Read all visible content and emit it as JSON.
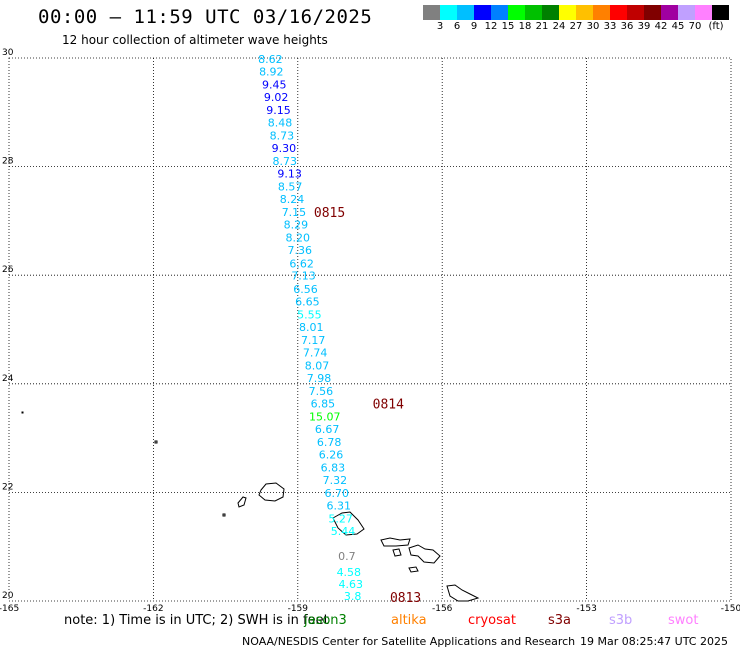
{
  "header": {
    "title": "00:00 – 11:59 UTC 03/16/2025",
    "subtitle": "12 hour collection of altimeter wave heights"
  },
  "legend": {
    "colors": [
      "#808080",
      "#00ffff",
      "#00bfff",
      "#0000ff",
      "#0080ff",
      "#00ff00",
      "#00c000",
      "#008000",
      "#ffff00",
      "#ffc000",
      "#ff8000",
      "#ff0000",
      "#c00000",
      "#800000",
      "#a000a0",
      "#c0a0ff",
      "#ff80ff",
      "#000000"
    ],
    "labels": [
      "3",
      "6",
      "9",
      "12",
      "15",
      "18",
      "21",
      "24",
      "27",
      "30",
      "33",
      "36",
      "39",
      "42",
      "45",
      "70",
      "(ft)"
    ]
  },
  "axes": {
    "x_ticks": [
      "-165",
      "-162",
      "-159",
      "-156",
      "-153",
      "-150"
    ],
    "y_ticks": [
      "30",
      "28",
      "26",
      "24",
      "22",
      "20"
    ]
  },
  "chart_data": {
    "type": "scatter",
    "xlim": [
      -165,
      -150
    ],
    "ylim": [
      20,
      30
    ],
    "grid": true,
    "points": [
      {
        "lon": -159.57,
        "lat": 29.98,
        "v": "8.62"
      },
      {
        "lon": -159.55,
        "lat": 29.75,
        "v": "8.92"
      },
      {
        "lon": -159.49,
        "lat": 29.51,
        "v": "9.45"
      },
      {
        "lon": -159.45,
        "lat": 29.28,
        "v": "9.02"
      },
      {
        "lon": -159.4,
        "lat": 29.04,
        "v": "9.15"
      },
      {
        "lon": -159.37,
        "lat": 28.81,
        "v": "8.48"
      },
      {
        "lon": -159.33,
        "lat": 28.57,
        "v": "8.73"
      },
      {
        "lon": -159.29,
        "lat": 28.34,
        "v": "9.30"
      },
      {
        "lon": -159.27,
        "lat": 28.1,
        "v": "8.73"
      },
      {
        "lon": -159.17,
        "lat": 27.87,
        "v": "9.13"
      },
      {
        "lon": -159.16,
        "lat": 27.63,
        "v": "8.57"
      },
      {
        "lon": -159.12,
        "lat": 27.4,
        "v": "8.24"
      },
      {
        "lon": -159.08,
        "lat": 27.16,
        "v": "7.15"
      },
      {
        "lon": -159.04,
        "lat": 26.93,
        "v": "8.29"
      },
      {
        "lon": -159.0,
        "lat": 26.69,
        "v": "8.20"
      },
      {
        "lon": -158.96,
        "lat": 26.46,
        "v": "7.36"
      },
      {
        "lon": -158.92,
        "lat": 26.22,
        "v": "6.62"
      },
      {
        "lon": -158.88,
        "lat": 25.99,
        "v": "7.13"
      },
      {
        "lon": -158.84,
        "lat": 25.75,
        "v": "6.56"
      },
      {
        "lon": -158.8,
        "lat": 25.52,
        "v": "6.65"
      },
      {
        "lon": -158.76,
        "lat": 25.28,
        "v": "5.55"
      },
      {
        "lon": -158.72,
        "lat": 25.05,
        "v": "8.01"
      },
      {
        "lon": -158.68,
        "lat": 24.81,
        "v": "7.17"
      },
      {
        "lon": -158.64,
        "lat": 24.58,
        "v": "7.74"
      },
      {
        "lon": -158.6,
        "lat": 24.34,
        "v": "8.07"
      },
      {
        "lon": -158.56,
        "lat": 24.11,
        "v": "7.98"
      },
      {
        "lon": -158.52,
        "lat": 23.87,
        "v": "7.56"
      },
      {
        "lon": -158.48,
        "lat": 23.64,
        "v": "6.85"
      },
      {
        "lon": -158.44,
        "lat": 23.4,
        "v": "15.07"
      },
      {
        "lon": -158.39,
        "lat": 23.17,
        "v": "6.67"
      },
      {
        "lon": -158.35,
        "lat": 22.93,
        "v": "6.78"
      },
      {
        "lon": -158.31,
        "lat": 22.7,
        "v": "6.26"
      },
      {
        "lon": -158.27,
        "lat": 22.46,
        "v": "6.83"
      },
      {
        "lon": -158.23,
        "lat": 22.23,
        "v": "7.32"
      },
      {
        "lon": -158.19,
        "lat": 21.99,
        "v": "6.70"
      },
      {
        "lon": -158.15,
        "lat": 21.76,
        "v": "6.31"
      },
      {
        "lon": -158.11,
        "lat": 21.52,
        "v": "5.27"
      },
      {
        "lon": -158.06,
        "lat": 21.29,
        "v": "5.44"
      },
      {
        "lon": -157.98,
        "lat": 20.83,
        "v": "0.7"
      },
      {
        "lon": -157.94,
        "lat": 20.53,
        "v": "4.58"
      },
      {
        "lon": -157.9,
        "lat": 20.31,
        "v": "4.63"
      },
      {
        "lon": -157.86,
        "lat": 20.09,
        "v": "3.8"
      }
    ],
    "pass_labels": [
      {
        "lon": -158.34,
        "lat": 27.16,
        "text": "0815"
      },
      {
        "lon": -157.12,
        "lat": 23.64,
        "text": "0814"
      },
      {
        "lon": -156.76,
        "lat": 20.07,
        "text": "0813"
      }
    ]
  },
  "footnote": {
    "note_text": "note:  1) Time is in UTC;  2) SWH is in feet"
  },
  "satellites": [
    {
      "name": "jason3",
      "color": "#008000",
      "left": 304
    },
    {
      "name": "altika",
      "color": "#ff8000",
      "left": 391
    },
    {
      "name": "cryosat",
      "color": "#ff0000",
      "left": 468
    },
    {
      "name": "s3a",
      "color": "#800000",
      "left": 548
    },
    {
      "name": "s3b",
      "color": "#c0a0ff",
      "left": 609
    },
    {
      "name": "swot",
      "color": "#ff80ff",
      "left": 668
    }
  ],
  "credits": {
    "org": "NOAA/NESDIS Center for Satellite Applications and Research",
    "timestamp": "19 Mar 08:25:47 UTC 2025"
  }
}
